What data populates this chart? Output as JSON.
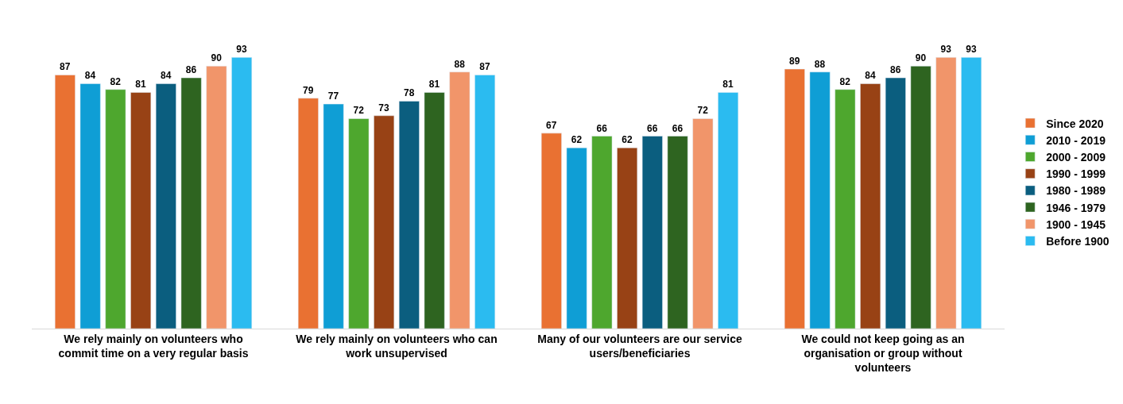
{
  "chart_data": {
    "type": "bar",
    "categories": [
      "We rely mainly on volunteers who\ncommit time on a very regular basis",
      "We rely mainly on volunteers who can\nwork unsupervised",
      "Many of our volunteers are our service\nusers/beneficiaries",
      "We could not keep going as an\norganisation or group without\nvolunteers"
    ],
    "series": [
      {
        "name": "Since 2020",
        "color": "#e97132",
        "values": [
          87,
          79,
          67,
          89
        ]
      },
      {
        "name": "2010 - 2019",
        "color": "#0f9ed5",
        "values": [
          84,
          77,
          62,
          88
        ]
      },
      {
        "name": "2000 - 2009",
        "color": "#4ea72e",
        "values": [
          82,
          72,
          66,
          82
        ]
      },
      {
        "name": "1990 - 1999",
        "color": "#984215",
        "values": [
          81,
          73,
          62,
          84
        ]
      },
      {
        "name": "1980 - 1989",
        "color": "#0b5e7f",
        "values": [
          84,
          78,
          66,
          86
        ]
      },
      {
        "name": "1946 - 1979",
        "color": "#2e6420",
        "values": [
          86,
          81,
          66,
          90
        ]
      },
      {
        "name": "1900 - 1945",
        "color": "#f1956a",
        "values": [
          90,
          88,
          72,
          93
        ]
      },
      {
        "name": "Before 1900",
        "color": "#2bbbf0",
        "values": [
          93,
          87,
          81,
          93
        ]
      }
    ],
    "data_labels": true,
    "legend": "right",
    "tick_labels": "x"
  }
}
